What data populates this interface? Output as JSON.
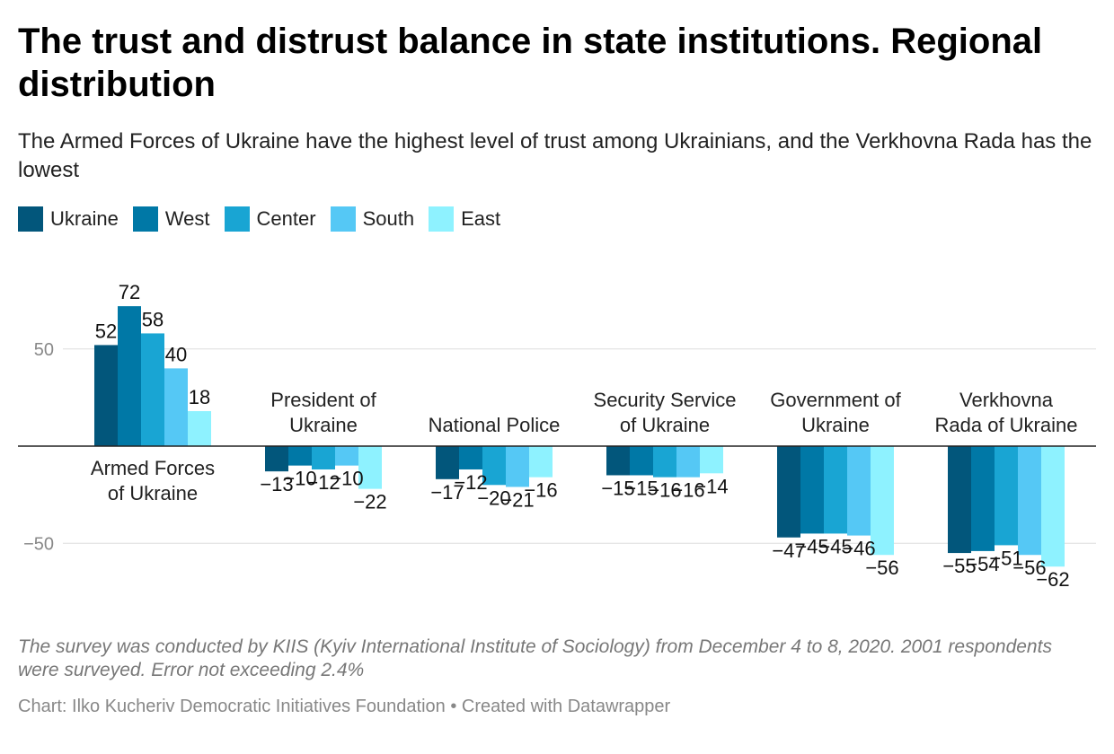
{
  "header": {
    "title": "The trust and distrust balance in state institutions. Regional distribution",
    "subtitle": "The Armed Forces of Ukraine have the highest level of trust among Ukrainians, and the Verkhovna Rada has the lowest"
  },
  "colors": {
    "Ukraine": "#02567b",
    "West": "#0078a6",
    "Center": "#19a5d3",
    "South": "#55c8f5",
    "East": "#8ef2ff"
  },
  "chart_data": {
    "type": "bar",
    "categories": [
      [
        "Armed Forces",
        "of Ukraine"
      ],
      [
        "President of",
        "Ukraine"
      ],
      [
        "National Police"
      ],
      [
        "Security Service",
        "of Ukraine"
      ],
      [
        "Government of",
        "Ukraine"
      ],
      [
        "Verkhovna",
        "Rada of Ukraine"
      ]
    ],
    "series": [
      {
        "name": "Ukraine",
        "values": [
          52,
          -13,
          -17,
          -15,
          -47,
          -55
        ]
      },
      {
        "name": "West",
        "values": [
          72,
          -10,
          -12,
          -15,
          -45,
          -54
        ]
      },
      {
        "name": "Center",
        "values": [
          58,
          -12,
          -20,
          -16,
          -45,
          -51
        ]
      },
      {
        "name": "South",
        "values": [
          40,
          -10,
          -21,
          -16,
          -46,
          -56
        ]
      },
      {
        "name": "East",
        "values": [
          18,
          -22,
          -16,
          -14,
          -56,
          -62
        ]
      }
    ],
    "y_ticks": [
      50,
      -50
    ],
    "y_tick_labels": [
      "50",
      "−50"
    ],
    "ylim": [
      -75,
      85
    ],
    "legend_position": "top-left",
    "grid": true
  },
  "footer": {
    "notes": "The survey was conducted by KIIS (Kyiv International Institute of Sociology) from December 4 to 8, 2020. 2001 respondents were surveyed. Error not exceeding 2.4%",
    "source": "Chart: Ilko Kucheriv Democratic Initiatives Foundation • Created with Datawrapper"
  }
}
